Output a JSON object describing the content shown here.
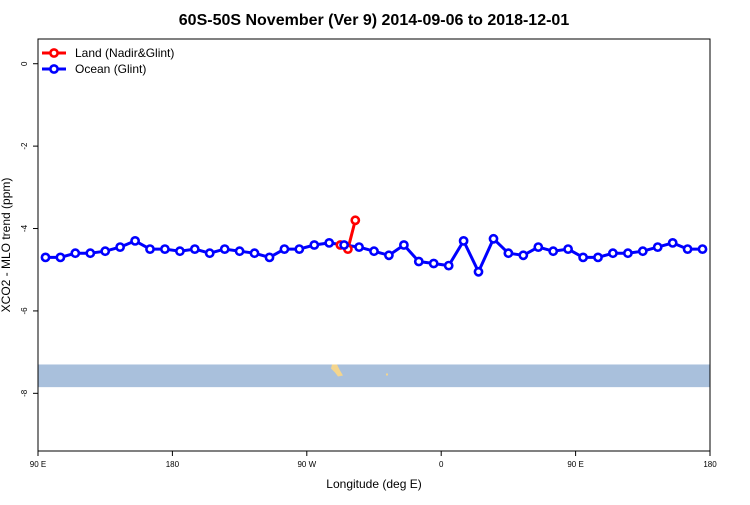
{
  "chart_data": {
    "type": "line",
    "title": "60S-50S November (Ver 9)   2014-09-06 to 2018-12-01",
    "xlabel": "Longitude (deg E)",
    "ylabel": "XCO2 - MLO trend (ppm)",
    "x_tick_labels": [
      "90 E",
      "180",
      "90 W",
      "0",
      "90 E",
      "180"
    ],
    "y_tick_labels": [
      "0",
      "-2",
      "-4",
      "-6",
      "-8"
    ],
    "xlim": [
      -270,
      180
    ],
    "ylim": [
      -9.4,
      0.6
    ],
    "legend_position": "top-left",
    "grid": false,
    "map_strip": {
      "y_range": [
        -7.3,
        -7.85
      ],
      "ocean_color": "#a9c0dc",
      "land_color": "#f4d58d"
    },
    "series": [
      {
        "name": "Land (Nadir&Glint)",
        "color": "#ff0000",
        "x": [
          -67.5,
          -62.5,
          -57.5
        ],
        "y": [
          -4.4,
          -4.5,
          -3.8
        ]
      },
      {
        "name": "Ocean (Glint)",
        "color": "#0000ff",
        "x": [
          -265,
          -255,
          -245,
          -235,
          -225,
          -215,
          -205,
          -195,
          -185,
          -175,
          -165,
          -155,
          -145,
          -135,
          -125,
          -115,
          -105,
          -95,
          -85,
          -75,
          -65,
          -55,
          -45,
          -35,
          -25,
          -15,
          -5,
          5,
          15,
          25,
          35,
          45,
          55,
          65,
          75,
          85,
          95,
          105,
          115,
          125,
          135,
          145,
          155,
          165,
          175
        ],
        "y": [
          -4.7,
          -4.7,
          -4.6,
          -4.6,
          -4.55,
          -4.45,
          -4.3,
          -4.5,
          -4.5,
          -4.55,
          -4.5,
          -4.6,
          -4.5,
          -4.55,
          -4.6,
          -4.7,
          -4.5,
          -4.5,
          -4.4,
          -4.35,
          -4.4,
          -4.45,
          -4.55,
          -4.65,
          -4.4,
          -4.8,
          -4.85,
          -4.9,
          -4.3,
          -5.05,
          -4.25,
          -4.6,
          -4.65,
          -4.45,
          -4.55,
          -4.5,
          -4.7,
          -4.7,
          -4.6,
          -4.6,
          -4.55,
          -4.45,
          -4.35,
          -4.5,
          -4.5
        ]
      }
    ]
  }
}
